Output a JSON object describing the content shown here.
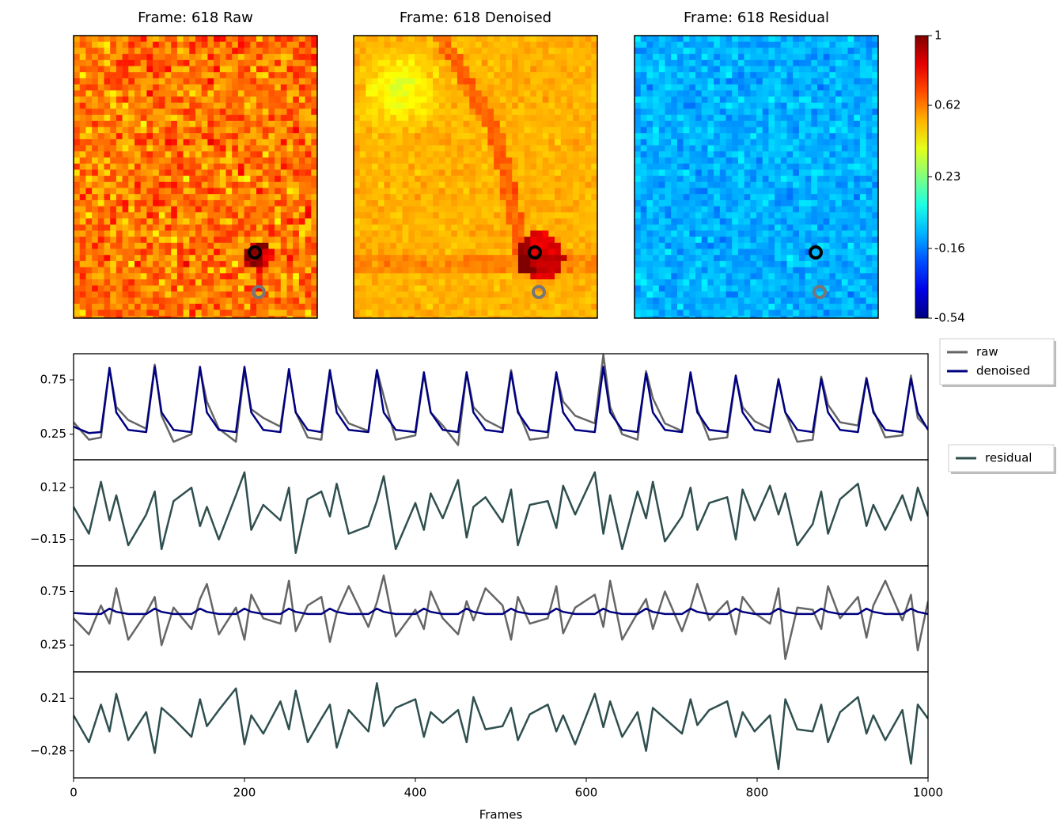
{
  "chart_data": [
    {
      "type": "image",
      "title": "Frame: 618 Raw"
    },
    {
      "type": "image",
      "title": "Frame: 618 Denoised"
    },
    {
      "type": "image",
      "title": "Frame: 618 Residual",
      "colorbar": {
        "clim": [
          -0.54,
          1
        ],
        "ticks": [
          1,
          0.62,
          0.23,
          -0.16,
          -0.54
        ]
      }
    },
    {
      "type": "line",
      "xlabel": "Frames",
      "xlim": [
        0,
        1000
      ],
      "xticks": [
        0,
        200,
        400,
        600,
        800,
        1000
      ],
      "x": [
        0,
        18,
        32,
        42,
        50,
        64,
        85,
        95,
        103,
        117,
        138,
        148,
        156,
        170,
        190,
        200,
        208,
        222,
        242,
        252,
        260,
        274,
        290,
        300,
        308,
        322,
        345,
        355,
        363,
        377,
        400,
        410,
        418,
        432,
        450,
        460,
        468,
        482,
        502,
        512,
        520,
        534,
        555,
        565,
        573,
        587,
        610,
        620,
        628,
        642,
        660,
        670,
        678,
        692,
        712,
        722,
        730,
        744,
        765,
        775,
        783,
        797,
        815,
        825,
        833,
        847,
        865,
        875,
        883,
        897,
        918,
        928,
        936,
        950,
        970,
        980,
        988,
        1000
      ],
      "panels": [
        {
          "ylim": [
            0.015,
            0.99
          ],
          "yticks": [
            0.25,
            0.75
          ],
          "legend": "outside right",
          "series": [
            {
              "name": "raw",
              "color": "#666666",
              "values": [
                0.36,
                0.2,
                0.22,
                0.86,
                0.5,
                0.38,
                0.3,
                0.89,
                0.42,
                0.18,
                0.25,
                0.85,
                0.55,
                0.3,
                0.18,
                0.84,
                0.48,
                0.4,
                0.32,
                0.83,
                0.45,
                0.22,
                0.2,
                0.82,
                0.52,
                0.35,
                0.28,
                0.84,
                0.6,
                0.2,
                0.24,
                0.8,
                0.45,
                0.33,
                0.15,
                0.82,
                0.5,
                0.38,
                0.3,
                0.84,
                0.47,
                0.2,
                0.22,
                0.8,
                0.55,
                0.42,
                0.35,
                0.98,
                0.5,
                0.25,
                0.2,
                0.83,
                0.58,
                0.35,
                0.28,
                0.8,
                0.48,
                0.2,
                0.22,
                0.78,
                0.5,
                0.37,
                0.3,
                0.76,
                0.45,
                0.18,
                0.2,
                0.78,
                0.52,
                0.36,
                0.33,
                0.77,
                0.47,
                0.22,
                0.24,
                0.79,
                0.4,
                0.3
              ]
            },
            {
              "name": "denoised",
              "color": "#000080",
              "values": [
                0.32,
                0.26,
                0.27,
                0.86,
                0.45,
                0.29,
                0.27,
                0.87,
                0.45,
                0.29,
                0.27,
                0.87,
                0.45,
                0.29,
                0.27,
                0.87,
                0.45,
                0.29,
                0.27,
                0.85,
                0.45,
                0.29,
                0.27,
                0.84,
                0.45,
                0.29,
                0.27,
                0.84,
                0.45,
                0.29,
                0.27,
                0.82,
                0.45,
                0.29,
                0.27,
                0.82,
                0.45,
                0.29,
                0.27,
                0.82,
                0.45,
                0.29,
                0.27,
                0.82,
                0.45,
                0.29,
                0.27,
                0.87,
                0.45,
                0.29,
                0.27,
                0.81,
                0.45,
                0.29,
                0.27,
                0.82,
                0.45,
                0.29,
                0.27,
                0.79,
                0.45,
                0.29,
                0.27,
                0.75,
                0.45,
                0.29,
                0.27,
                0.76,
                0.45,
                0.29,
                0.27,
                0.76,
                0.45,
                0.29,
                0.27,
                0.76,
                0.45,
                0.29
              ]
            }
          ]
        },
        {
          "ylim": [
            -0.287,
            0.265
          ],
          "yticks": [
            0.12,
            {
              "value": -0.15,
              "label": "−0.15"
            }
          ],
          "legend": "outside right",
          "series": [
            {
              "name": "residual",
              "color": "#2f4f4f",
              "values": [
                0.02,
                -0.12,
                0.15,
                -0.05,
                0.08,
                -0.18,
                -0.02,
                0.1,
                -0.2,
                0.05,
                0.12,
                -0.08,
                0.02,
                -0.15,
                0.08,
                0.2,
                -0.1,
                0.03,
                -0.05,
                0.12,
                -0.22,
                0.06,
                0.1,
                -0.03,
                0.14,
                -0.12,
                -0.08,
                0.05,
                0.18,
                -0.2,
                0.04,
                -0.1,
                0.09,
                -0.04,
                0.16,
                -0.14,
                0.02,
                0.07,
                -0.06,
                0.11,
                -0.18,
                0.03,
                0.05,
                -0.09,
                0.13,
                -0.02,
                0.2,
                -0.12,
                0.08,
                -0.2,
                0.1,
                -0.04,
                0.15,
                -0.16,
                -0.03,
                0.12,
                -0.1,
                0.04,
                0.07,
                -0.15,
                0.11,
                -0.05,
                0.13,
                -0.02,
                0.09,
                -0.18,
                -0.07,
                0.1,
                -0.12,
                0.06,
                0.14,
                -0.08,
                0.03,
                -0.1,
                0.08,
                -0.05,
                0.12,
                -0.03
              ]
            }
          ]
        },
        {
          "ylim": [
            0,
            0.99
          ],
          "yticks": [
            0.25,
            0.75
          ],
          "series": [
            {
              "color": "#666666",
              "values": [
                0.5,
                0.35,
                0.62,
                0.45,
                0.78,
                0.3,
                0.55,
                0.7,
                0.25,
                0.6,
                0.4,
                0.68,
                0.82,
                0.35,
                0.6,
                0.3,
                0.72,
                0.5,
                0.45,
                0.85,
                0.38,
                0.62,
                0.7,
                0.28,
                0.55,
                0.8,
                0.42,
                0.65,
                0.9,
                0.33,
                0.58,
                0.4,
                0.75,
                0.5,
                0.35,
                0.66,
                0.48,
                0.78,
                0.62,
                0.3,
                0.7,
                0.45,
                0.5,
                0.8,
                0.36,
                0.6,
                0.72,
                0.42,
                0.85,
                0.3,
                0.55,
                0.68,
                0.4,
                0.75,
                0.38,
                0.6,
                0.82,
                0.48,
                0.66,
                0.35,
                0.7,
                0.55,
                0.45,
                0.78,
                0.12,
                0.6,
                0.58,
                0.4,
                0.8,
                0.5,
                0.7,
                0.32,
                0.62,
                0.85,
                0.48,
                0.72,
                0.2,
                0.66
              ]
            },
            {
              "color": "#000080",
              "values": [
                0.55,
                0.54,
                0.54,
                0.59,
                0.56,
                0.54,
                0.54,
                0.59,
                0.56,
                0.54,
                0.54,
                0.59,
                0.56,
                0.54,
                0.54,
                0.59,
                0.56,
                0.54,
                0.54,
                0.59,
                0.56,
                0.54,
                0.54,
                0.59,
                0.56,
                0.54,
                0.54,
                0.59,
                0.56,
                0.54,
                0.54,
                0.59,
                0.56,
                0.54,
                0.54,
                0.59,
                0.56,
                0.54,
                0.54,
                0.59,
                0.56,
                0.54,
                0.54,
                0.59,
                0.56,
                0.54,
                0.54,
                0.59,
                0.56,
                0.54,
                0.54,
                0.59,
                0.56,
                0.54,
                0.54,
                0.59,
                0.56,
                0.54,
                0.54,
                0.59,
                0.56,
                0.54,
                0.54,
                0.59,
                0.56,
                0.54,
                0.54,
                0.59,
                0.56,
                0.54,
                0.54,
                0.59,
                0.56,
                0.54,
                0.54,
                0.59,
                0.56,
                0.54
              ]
            }
          ]
        },
        {
          "ylim": [
            -0.532,
            0.455
          ],
          "yticks": [
            0.21,
            {
              "value": -0.28,
              "label": "−0.28"
            }
          ],
          "series": [
            {
              "color": "#2f4f4f",
              "values": [
                0.05,
                -0.2,
                0.15,
                -0.1,
                0.25,
                -0.18,
                0.08,
                -0.3,
                0.12,
                0.02,
                -0.15,
                0.2,
                -0.05,
                0.1,
                0.3,
                -0.22,
                0.05,
                -0.12,
                0.18,
                -0.08,
                0.28,
                -0.2,
                0.02,
                0.15,
                -0.25,
                0.1,
                -0.1,
                0.35,
                -0.05,
                0.12,
                0.2,
                -0.15,
                0.08,
                -0.02,
                0.1,
                -0.2,
                0.22,
                -0.08,
                -0.05,
                0.12,
                -0.18,
                0.06,
                0.15,
                -0.1,
                0.05,
                -0.22,
                0.25,
                -0.06,
                0.18,
                -0.15,
                0.08,
                -0.28,
                0.12,
                0.02,
                -0.12,
                0.2,
                -0.04,
                0.1,
                0.18,
                -0.15,
                0.08,
                -0.1,
                0.05,
                -0.45,
                0.2,
                -0.08,
                -0.1,
                0.15,
                -0.2,
                0.08,
                0.22,
                -0.12,
                0.05,
                -0.18,
                0.1,
                -0.4,
                0.15,
                0.02
              ]
            }
          ]
        }
      ]
    }
  ]
}
